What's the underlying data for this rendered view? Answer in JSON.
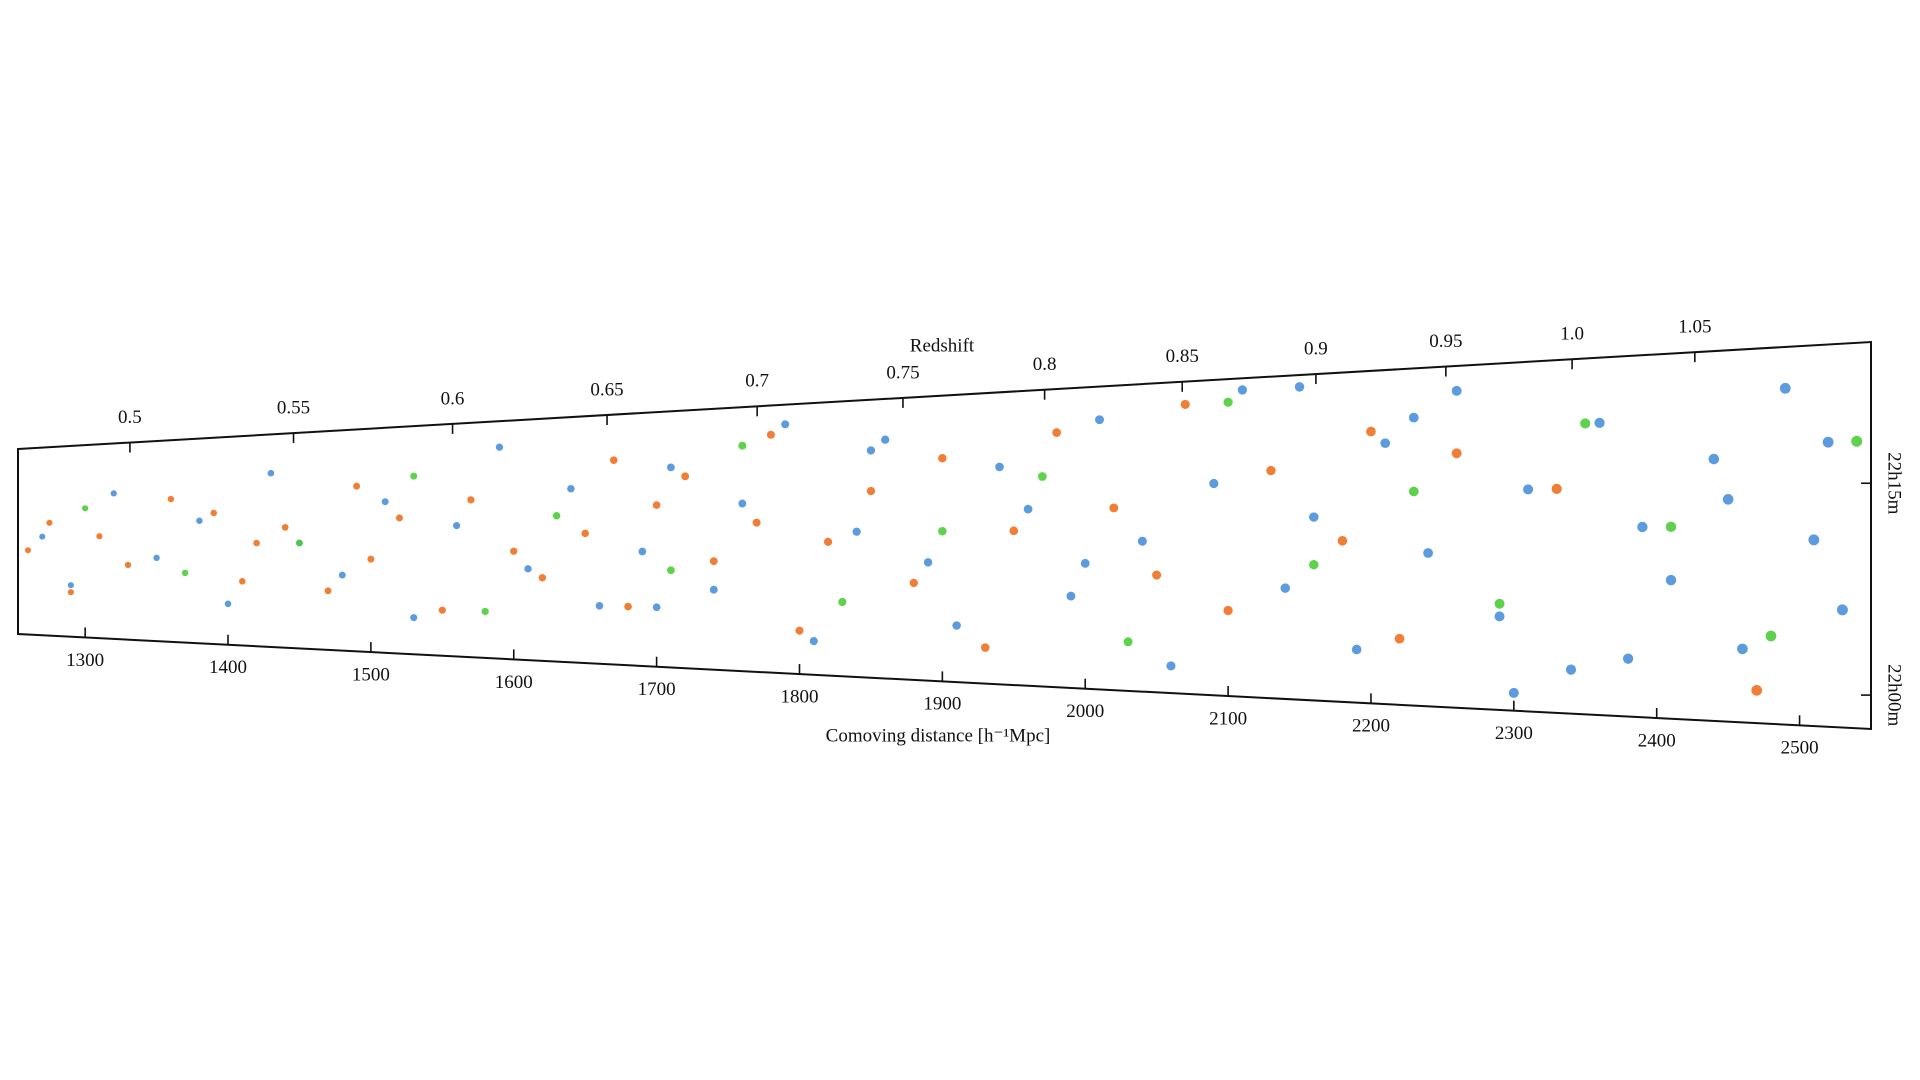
{
  "chart_data": {
    "type": "scatter",
    "title": "Redshift",
    "xlabel": "Comoving distance [h⁻¹Mpc]",
    "xlim": [
      1253,
      2550
    ],
    "xticks": [
      1300,
      1400,
      1500,
      1600,
      1700,
      1800,
      1900,
      2000,
      2100,
      2200,
      2300,
      2400,
      2500
    ],
    "x2ticks": [
      0.5,
      0.55,
      0.6,
      0.65,
      0.7,
      0.75,
      0.8,
      0.85,
      0.9,
      0.95,
      {
        "value": 1,
        "label": "1.0"
      },
      1.05
    ],
    "ylim": [
      -2.4,
      25
    ],
    "yticks": [
      {
        "value": 0,
        "label": "22h00m"
      },
      {
        "value": 15,
        "label": "22h15m"
      }
    ],
    "series": [
      {
        "color": "#4a90d9",
        "x": [
          1270,
          1290,
          1320,
          1350,
          1380,
          1400,
          1430,
          1450,
          1480,
          1510,
          1530,
          1560,
          1590,
          1610,
          1640,
          1660,
          1690,
          1710,
          1740,
          1760,
          1790,
          1810,
          1840,
          1860,
          1890,
          1910,
          1940,
          1960,
          1990,
          2010,
          2040,
          2060,
          2090,
          2110,
          2140,
          2160,
          2190,
          2210,
          2240,
          2260,
          2290,
          2310,
          2340,
          2360,
          2390,
          2410,
          2440,
          2460,
          2490,
          2510,
          2530,
          1700,
          1850,
          2000,
          2150,
          2300,
          2450,
          2520,
          2380,
          2230
        ],
        "values": [
          12,
          5,
          18,
          9,
          14,
          3,
          20,
          11,
          7,
          16,
          2,
          13,
          22,
          8,
          17,
          4,
          10,
          19,
          6,
          15,
          23,
          1,
          12,
          21,
          9,
          3,
          18,
          14,
          6,
          22,
          11,
          0,
          16,
          24,
          7,
          13,
          2,
          19,
          10,
          23,
          5,
          15,
          1,
          20,
          12,
          8,
          17,
          3,
          22,
          11,
          6,
          4,
          20,
          9,
          24,
          -1,
          14,
          18,
          2,
          21
        ]
      },
      {
        "color": "#f07020",
        "x": [
          1260,
          1275,
          1290,
          1310,
          1330,
          1360,
          1390,
          1410,
          1420,
          1440,
          1470,
          1490,
          1500,
          1520,
          1550,
          1570,
          1600,
          1620,
          1650,
          1670,
          1680,
          1700,
          1720,
          1740,
          1770,
          1780,
          1800,
          1820,
          1850,
          1880,
          1900,
          1930,
          1950,
          1980,
          2020,
          2050,
          2070,
          2100,
          2130,
          2180,
          2200,
          2220,
          2260,
          2330,
          2470
        ],
        "values": [
          10,
          14,
          4,
          12,
          8,
          17,
          15,
          6,
          11,
          13,
          5,
          18,
          9,
          14,
          3,
          16,
          10,
          7,
          12,
          20,
          4,
          15,
          18,
          9,
          13,
          22,
          2,
          11,
          16,
          7,
          19,
          1,
          12,
          21,
          14,
          8,
          23,
          5,
          17,
          11,
          20,
          3,
          18,
          15,
          0
        ]
      },
      {
        "color": "#4ccd3a",
        "x": [
          1300,
          1370,
          1450,
          1530,
          1580,
          1630,
          1710,
          1760,
          1830,
          1900,
          1970,
          2030,
          2100,
          2160,
          2230,
          2290,
          2350,
          2410,
          2480,
          2540
        ],
        "values": [
          16,
          7,
          11,
          19,
          3,
          14,
          8,
          21,
          5,
          12,
          17,
          2,
          23,
          9,
          15,
          6,
          20,
          12,
          4,
          18
        ]
      }
    ]
  }
}
